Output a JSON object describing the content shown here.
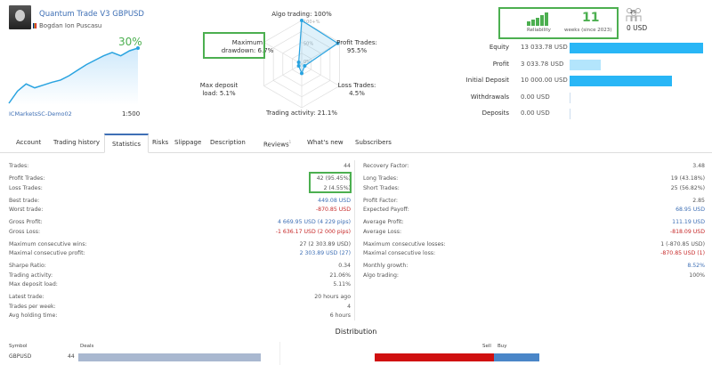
{
  "signal": {
    "title": "Quantum Trade V3 GBPUSD",
    "author": "Bogdan Ion Puscasu",
    "growth": "30%",
    "broker": "ICMarketsSC-Demo02",
    "leverage": "1:500",
    "equity_curve": [
      0,
      22,
      35,
      28,
      33,
      38,
      42,
      50,
      60,
      70,
      78,
      86,
      92,
      86,
      95,
      100
    ]
  },
  "radar": {
    "axes": [
      {
        "label": "Algo trading: 100%",
        "value": 100
      },
      {
        "label": "Profit Trades: 95.5%",
        "value": 95.5
      },
      {
        "label": "Loss Trades: 4.5%",
        "value": 4.5
      },
      {
        "label": "Trading activity: 21.1%",
        "value": 21.1
      },
      {
        "label": "Max deposit load: 5.1%",
        "value": 5.1
      },
      {
        "label": "Maximum drawdown: 6.7%",
        "value": 6.7
      }
    ],
    "label_lines": [
      [
        "Algo trading: 100%"
      ],
      [
        "Profit Trades:",
        "95.5%"
      ],
      [
        "Loss Trades:",
        "4.5%"
      ],
      [
        "Trading activity: 21.1%"
      ],
      [
        "Max deposit",
        "load: 5.1%"
      ],
      [
        "Maximum",
        "drawdown: 6.7%"
      ]
    ],
    "ticks": [
      "100+%",
      "50%",
      "0%"
    ]
  },
  "reliability": {
    "label": "Reliability",
    "weeks": "11",
    "weeks_label": "weeks (since 2023)",
    "subscribers_count": "25",
    "subscribers_value": "0 USD"
  },
  "balance": [
    {
      "label": "Equity",
      "value": "13 033.78 USD",
      "fraction": 1.0,
      "color": "#29b6f6"
    },
    {
      "label": "Profit",
      "value": "3 033.78 USD",
      "fraction": 0.233,
      "color": "#b3e5fc"
    },
    {
      "label": "Initial Deposit",
      "value": "10 000.00 USD",
      "fraction": 0.767,
      "color": "#29b6f6"
    },
    {
      "label": "Withdrawals",
      "value": "0.00 USD",
      "fraction": 0,
      "color": "#29b6f6"
    },
    {
      "label": "Deposits",
      "value": "0.00 USD",
      "fraction": 0,
      "color": "#29b6f6"
    }
  ],
  "tabs": [
    {
      "label": "Account"
    },
    {
      "label": "Trading history"
    },
    {
      "label": "Statistics",
      "active": true
    },
    {
      "label": "Risks"
    },
    {
      "label": "Slippage"
    },
    {
      "label": "Description"
    },
    {
      "label": "Reviews",
      "badge": "1"
    },
    {
      "label": "What's new"
    },
    {
      "label": "Subscribers"
    }
  ],
  "stats_left": [
    {
      "k": "Trades:",
      "v": "44"
    },
    {
      "k": "Profit Trades:",
      "v": "42 (95.45%)"
    },
    {
      "k": "Loss Trades:",
      "v": "2 (4.55%)"
    },
    {
      "k": "Best trade:",
      "v": "449.08 USD",
      "c": "blue"
    },
    {
      "k": "Worst trade:",
      "v": "-870.85 USD",
      "c": "red"
    },
    {
      "k": "Gross Profit:",
      "v": "4 669.95 USD (4 229 pips)",
      "c": "blue"
    },
    {
      "k": "Gross Loss:",
      "v": "-1 636.17 USD (2 000 pips)",
      "c": "red"
    },
    {
      "k": "Maximum consecutive wins:",
      "v": "27 (2 303.89 USD)"
    },
    {
      "k": "Maximal consecutive profit:",
      "v": "2 303.89 USD (27)",
      "c": "blue"
    },
    {
      "k": "Sharpe Ratio:",
      "v": "0.34"
    },
    {
      "k": "Trading activity:",
      "v": "21.06%"
    },
    {
      "k": "Max deposit load:",
      "v": "5.11%"
    },
    {
      "k": "Latest trade:",
      "v": "20 hours ago"
    },
    {
      "k": "Trades per week:",
      "v": "4"
    },
    {
      "k": "Avg holding time:",
      "v": "6 hours"
    }
  ],
  "stats_right": [
    {
      "k": "Recovery Factor:",
      "v": "3.48"
    },
    {
      "k": "Long Trades:",
      "v": "19 (43.18%)"
    },
    {
      "k": "Short Trades:",
      "v": "25 (56.82%)"
    },
    {
      "k": "Profit Factor:",
      "v": "2.85"
    },
    {
      "k": "Expected Payoff:",
      "v": "68.95 USD",
      "c": "blue"
    },
    {
      "k": "Average Profit:",
      "v": "111.19 USD",
      "c": "blue"
    },
    {
      "k": "Average Loss:",
      "v": "-818.09 USD",
      "c": "red"
    },
    {
      "k": "Maximum consecutive losses:",
      "v": "1 (-870.85 USD)"
    },
    {
      "k": "Maximal consecutive loss:",
      "v": "-870.85 USD (1)",
      "c": "red"
    },
    {
      "k": "Monthly growth:",
      "v": "8.52%",
      "c": "blue"
    },
    {
      "k": "Algo trading:",
      "v": "100%"
    }
  ],
  "distribution": {
    "title": "Distribution",
    "col_symbol": "Symbol",
    "col_deals": "Deals",
    "col_sell": "Sell",
    "col_buy": "Buy",
    "rows": [
      {
        "symbol": "GBPUSD",
        "deals": "44",
        "sell": 25,
        "buy": 19
      }
    ],
    "colors": {
      "deals": "#a9b8d0",
      "sell": "#d01010",
      "buy": "#4a86c8"
    }
  }
}
